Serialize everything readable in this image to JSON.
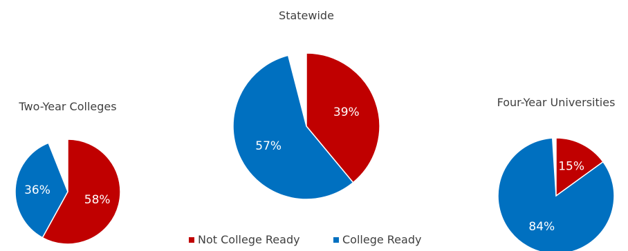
{
  "chart_data": {
    "type": "pie",
    "colors": {
      "Not College Ready": "#c00000",
      "College Ready": "#0070c0"
    },
    "charts": [
      {
        "title": "Two-Year Colleges",
        "slices": [
          {
            "label": "Not College Ready",
            "value": 58,
            "display": "58%"
          },
          {
            "label": "College Ready",
            "value": 36,
            "display": "36%"
          }
        ]
      },
      {
        "title": "Statewide",
        "slices": [
          {
            "label": "Not College Ready",
            "value": 39,
            "display": "39%"
          },
          {
            "label": "College Ready",
            "value": 57,
            "display": "57%"
          }
        ]
      },
      {
        "title": "Four-Year Universities",
        "slices": [
          {
            "label": "Not College Ready",
            "value": 15,
            "display": "15%"
          },
          {
            "label": "College Ready",
            "value": 84,
            "display": "84%"
          }
        ]
      }
    ],
    "legend": {
      "position": "bottom",
      "items": [
        "Not College Ready",
        "College Ready"
      ]
    }
  }
}
